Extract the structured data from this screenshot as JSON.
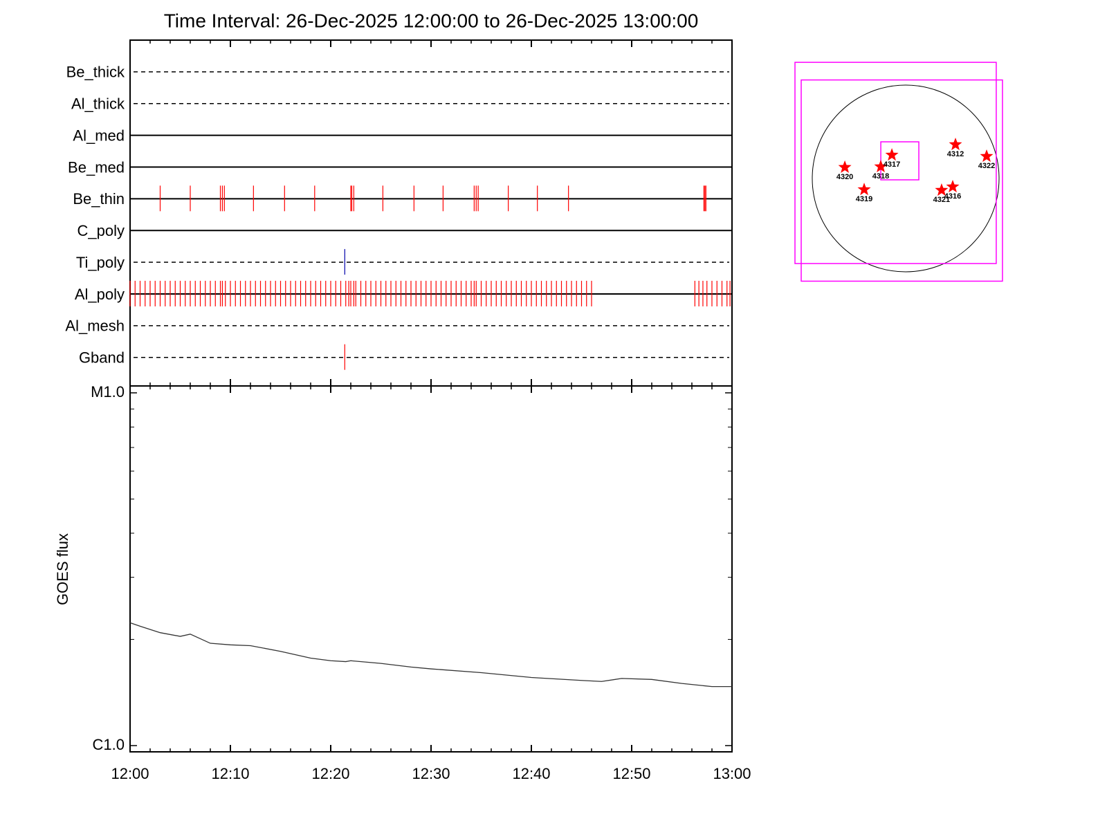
{
  "chart_data": [
    {
      "type": "timeline",
      "title": "Time Interval: 26-Dec-2025 12:00:00 to 26-Dec-2025 13:00:00",
      "xlim": [
        0,
        60
      ],
      "xminorticks": [
        2,
        4,
        6,
        8,
        12,
        14,
        16,
        18,
        22,
        24,
        26,
        28,
        32,
        34,
        36,
        38,
        42,
        44,
        46,
        48,
        52,
        54,
        56,
        58
      ],
      "rows": [
        {
          "name": "Be_thick",
          "style": "dashed",
          "events": []
        },
        {
          "name": "Al_thick",
          "style": "dashed",
          "events": []
        },
        {
          "name": "Al_med",
          "style": "solid",
          "events": []
        },
        {
          "name": "Be_med",
          "style": "solid",
          "events": []
        },
        {
          "name": "Be_thin",
          "style": "solid",
          "color": "#ff0000",
          "events": [
            3.0,
            6.0,
            9.0,
            9.2,
            9.4,
            12.3,
            15.4,
            18.4,
            22.0,
            22.1,
            22.3,
            25.2,
            28.3,
            31.2,
            34.3,
            34.5,
            34.7,
            37.7,
            40.6,
            43.7,
            57.2,
            57.3,
            57.4
          ]
        },
        {
          "name": "C_poly",
          "style": "solid",
          "events": []
        },
        {
          "name": "Ti_poly",
          "style": "dashed",
          "color": "#0000aa",
          "events": [
            21.4
          ]
        },
        {
          "name": "Al_poly",
          "style": "solid",
          "color": "#ff0000",
          "events": [
            0,
            0.5,
            1,
            1.5,
            2,
            2.5,
            3,
            3.5,
            4,
            4.5,
            5,
            5.5,
            6,
            6.5,
            7,
            7.5,
            8,
            8.5,
            9,
            9.2,
            9.5,
            10,
            10.5,
            11,
            11.5,
            12,
            12.5,
            13,
            13.5,
            14,
            14.5,
            15,
            15.5,
            16,
            16.5,
            17,
            17.5,
            18,
            18.5,
            19,
            19.5,
            20,
            20.5,
            21,
            21.5,
            21.8,
            22,
            22.3,
            22.5,
            23,
            23.5,
            24,
            24.5,
            25,
            25.5,
            26,
            26.5,
            27,
            27.5,
            28,
            28.5,
            29,
            29.5,
            30,
            30.5,
            31,
            31.5,
            32,
            32.5,
            33,
            33.5,
            34,
            34.3,
            34.5,
            35,
            35.5,
            36,
            36.5,
            37,
            37.5,
            38,
            38.5,
            39,
            39.5,
            40,
            40.5,
            41,
            41.5,
            42,
            42.5,
            43,
            43.5,
            44,
            44.5,
            45,
            45.5,
            46,
            56.3,
            56.7,
            57.1,
            57.5,
            58,
            58.5,
            59,
            59.5,
            59.8
          ]
        },
        {
          "name": "Al_mesh",
          "style": "dashed",
          "events": []
        },
        {
          "name": "Gband",
          "style": "dashed",
          "color": "#ff0000",
          "events": [
            21.4
          ]
        }
      ]
    },
    {
      "type": "line",
      "ylabel": "GOES flux",
      "log_y": true,
      "color": "#333333",
      "xlim": [
        0,
        60
      ],
      "xticks": [
        {
          "value": 0,
          "label": "12:00"
        },
        {
          "value": 10,
          "label": "12:10"
        },
        {
          "value": 20,
          "label": "12:20"
        },
        {
          "value": 30,
          "label": "12:30"
        },
        {
          "value": 40,
          "label": "12:40"
        },
        {
          "value": 50,
          "label": "12:50"
        },
        {
          "value": 60,
          "label": "13:00"
        }
      ],
      "ylim": [
        9.6e-07,
        1.046e-05
      ],
      "yticks": [
        {
          "value": 1e-06,
          "label": "C1.0"
        },
        {
          "value": 1e-05,
          "label": "M1.0"
        }
      ],
      "yminorticks": [
        2e-06,
        3e-06,
        4e-06,
        5e-06,
        6e-06,
        7e-06,
        8e-06,
        9e-06
      ],
      "x": [
        0,
        1,
        3,
        5,
        6,
        8,
        10,
        12,
        15,
        18,
        20,
        21.5,
        22,
        25,
        28,
        30,
        35,
        40,
        45,
        47,
        49,
        52,
        55,
        58,
        60
      ],
      "values": [
        2.23e-06,
        2.18e-06,
        2.09e-06,
        2.04e-06,
        2.07e-06,
        1.95e-06,
        1.93e-06,
        1.92e-06,
        1.85e-06,
        1.77e-06,
        1.74e-06,
        1.73e-06,
        1.74e-06,
        1.71e-06,
        1.67e-06,
        1.65e-06,
        1.61e-06,
        1.56e-06,
        1.53e-06,
        1.52e-06,
        1.55e-06,
        1.54e-06,
        1.5e-06,
        1.47e-06,
        1.47e-06
      ]
    },
    {
      "type": "map",
      "radius": 975,
      "box_color": "#ff00ff",
      "star_color": "#ff0000",
      "boxes": [
        {
          "x": -105,
          "y": 162,
          "size": 2101
        },
        {
          "x": -40,
          "y": -22,
          "size": 2101
        },
        {
          "x": -61,
          "y": 184,
          "size": 397
        }
      ],
      "regions": [
        {
          "name": "4320",
          "x": -635,
          "y": 116
        },
        {
          "name": "4319",
          "x": -433,
          "y": -116
        },
        {
          "name": "4318",
          "x": -260,
          "y": 123
        },
        {
          "name": "4317",
          "x": -144,
          "y": 245
        },
        {
          "name": "4312",
          "x": 520,
          "y": 354
        },
        {
          "name": "4322",
          "x": 845,
          "y": 231
        },
        {
          "name": "4321",
          "x": 375,
          "y": -123
        },
        {
          "name": "4316",
          "x": 491,
          "y": -87
        }
      ]
    }
  ]
}
